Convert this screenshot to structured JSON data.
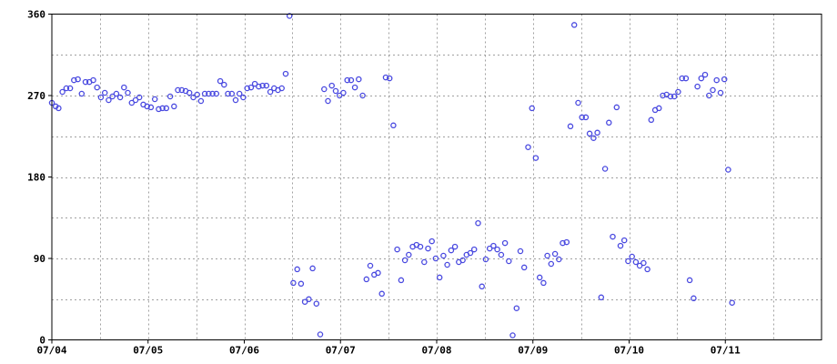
{
  "chart_data": {
    "type": "scatter",
    "title": "",
    "xlabel": "",
    "ylabel": "",
    "xlim": [
      "07/04",
      "07/12"
    ],
    "ylim": [
      0,
      360
    ],
    "x_tick_labels": [
      "07/04",
      "07/05",
      "07/06",
      "07/07",
      "07/08",
      "07/09",
      "07/10",
      "07/11"
    ],
    "y_tick_values": [
      0,
      90,
      180,
      270,
      360
    ],
    "grid": "dotted",
    "marker": "open-circle",
    "series": [
      {
        "color": "#4a4ae0",
        "points": [
          [
            0.0,
            262
          ],
          [
            0.04,
            258
          ],
          [
            0.07,
            256
          ],
          [
            0.11,
            274
          ],
          [
            0.15,
            278
          ],
          [
            0.19,
            278
          ],
          [
            0.23,
            287
          ],
          [
            0.27,
            288
          ],
          [
            0.31,
            272
          ],
          [
            0.35,
            285
          ],
          [
            0.39,
            285
          ],
          [
            0.43,
            287
          ],
          [
            0.47,
            279
          ],
          [
            0.51,
            268
          ],
          [
            0.55,
            273
          ],
          [
            0.59,
            265
          ],
          [
            0.63,
            269
          ],
          [
            0.67,
            272
          ],
          [
            0.71,
            268
          ],
          [
            0.75,
            279
          ],
          [
            0.79,
            273
          ],
          [
            0.83,
            262
          ],
          [
            0.87,
            265
          ],
          [
            0.91,
            268
          ],
          [
            0.95,
            260
          ],
          [
            0.99,
            258
          ],
          [
            1.03,
            257
          ],
          [
            1.07,
            266
          ],
          [
            1.11,
            255
          ],
          [
            1.15,
            256
          ],
          [
            1.19,
            256
          ],
          [
            1.23,
            269
          ],
          [
            1.27,
            258
          ],
          [
            1.31,
            276
          ],
          [
            1.35,
            276
          ],
          [
            1.39,
            275
          ],
          [
            1.43,
            273
          ],
          [
            1.47,
            268
          ],
          [
            1.51,
            271
          ],
          [
            1.55,
            264
          ],
          [
            1.59,
            272
          ],
          [
            1.63,
            272
          ],
          [
            1.67,
            272
          ],
          [
            1.71,
            272
          ],
          [
            1.75,
            286
          ],
          [
            1.79,
            282
          ],
          [
            1.83,
            272
          ],
          [
            1.87,
            272
          ],
          [
            1.91,
            265
          ],
          [
            1.95,
            272
          ],
          [
            1.99,
            268
          ],
          [
            2.03,
            278
          ],
          [
            2.07,
            279
          ],
          [
            2.11,
            283
          ],
          [
            2.15,
            280
          ],
          [
            2.19,
            281
          ],
          [
            2.23,
            281
          ],
          [
            2.27,
            274
          ],
          [
            2.31,
            278
          ],
          [
            2.35,
            276
          ],
          [
            2.39,
            278
          ],
          [
            2.43,
            294
          ],
          [
            2.47,
            358
          ],
          [
            2.51,
            63
          ],
          [
            2.55,
            78
          ],
          [
            2.59,
            62
          ],
          [
            2.63,
            42
          ],
          [
            2.67,
            45
          ],
          [
            2.71,
            79
          ],
          [
            2.75,
            40
          ],
          [
            2.79,
            6
          ],
          [
            2.83,
            277
          ],
          [
            2.87,
            264
          ],
          [
            2.91,
            281
          ],
          [
            2.95,
            275
          ],
          [
            2.99,
            270
          ],
          [
            3.03,
            273
          ],
          [
            3.07,
            287
          ],
          [
            3.11,
            287
          ],
          [
            3.15,
            279
          ],
          [
            3.19,
            288
          ],
          [
            3.23,
            270
          ],
          [
            3.27,
            67
          ],
          [
            3.31,
            82
          ],
          [
            3.35,
            72
          ],
          [
            3.39,
            74
          ],
          [
            3.43,
            51
          ],
          [
            3.47,
            290
          ],
          [
            3.51,
            289
          ],
          [
            3.55,
            237
          ],
          [
            3.59,
            100
          ],
          [
            3.63,
            66
          ],
          [
            3.67,
            88
          ],
          [
            3.71,
            94
          ],
          [
            3.75,
            103
          ],
          [
            3.79,
            105
          ],
          [
            3.83,
            103
          ],
          [
            3.87,
            86
          ],
          [
            3.91,
            101
          ],
          [
            3.95,
            109
          ],
          [
            3.99,
            90
          ],
          [
            4.03,
            69
          ],
          [
            4.07,
            93
          ],
          [
            4.11,
            83
          ],
          [
            4.15,
            99
          ],
          [
            4.19,
            103
          ],
          [
            4.23,
            86
          ],
          [
            4.27,
            88
          ],
          [
            4.31,
            94
          ],
          [
            4.35,
            96
          ],
          [
            4.39,
            100
          ],
          [
            4.43,
            129
          ],
          [
            4.47,
            59
          ],
          [
            4.51,
            89
          ],
          [
            4.55,
            101
          ],
          [
            4.59,
            104
          ],
          [
            4.63,
            100
          ],
          [
            4.67,
            94
          ],
          [
            4.71,
            107
          ],
          [
            4.75,
            87
          ],
          [
            4.79,
            5
          ],
          [
            4.83,
            35
          ],
          [
            4.87,
            98
          ],
          [
            4.91,
            80
          ],
          [
            4.95,
            213
          ],
          [
            4.99,
            256
          ],
          [
            5.03,
            201
          ],
          [
            5.07,
            69
          ],
          [
            5.11,
            63
          ],
          [
            5.15,
            93
          ],
          [
            5.19,
            84
          ],
          [
            5.23,
            95
          ],
          [
            5.27,
            89
          ],
          [
            5.31,
            107
          ],
          [
            5.35,
            108
          ],
          [
            5.39,
            236
          ],
          [
            5.43,
            348
          ],
          [
            5.47,
            262
          ],
          [
            5.51,
            246
          ],
          [
            5.55,
            246
          ],
          [
            5.59,
            228
          ],
          [
            5.63,
            223
          ],
          [
            5.67,
            229
          ],
          [
            5.71,
            47
          ],
          [
            5.75,
            189
          ],
          [
            5.79,
            240
          ],
          [
            5.83,
            114
          ],
          [
            5.87,
            257
          ],
          [
            5.91,
            104
          ],
          [
            5.95,
            110
          ],
          [
            5.99,
            87
          ],
          [
            6.03,
            92
          ],
          [
            6.07,
            86
          ],
          [
            6.11,
            82
          ],
          [
            6.15,
            85
          ],
          [
            6.19,
            78
          ],
          [
            6.23,
            243
          ],
          [
            6.27,
            254
          ],
          [
            6.31,
            256
          ],
          [
            6.35,
            270
          ],
          [
            6.39,
            271
          ],
          [
            6.43,
            269
          ],
          [
            6.47,
            269
          ],
          [
            6.51,
            274
          ],
          [
            6.55,
            289
          ],
          [
            6.59,
            289
          ],
          [
            6.63,
            66
          ],
          [
            6.67,
            46
          ],
          [
            6.71,
            280
          ],
          [
            6.75,
            289
          ],
          [
            6.79,
            293
          ],
          [
            6.83,
            270
          ],
          [
            6.87,
            276
          ],
          [
            6.91,
            287
          ],
          [
            6.95,
            273
          ],
          [
            6.99,
            288
          ],
          [
            7.03,
            188
          ],
          [
            7.07,
            41
          ]
        ]
      }
    ]
  }
}
